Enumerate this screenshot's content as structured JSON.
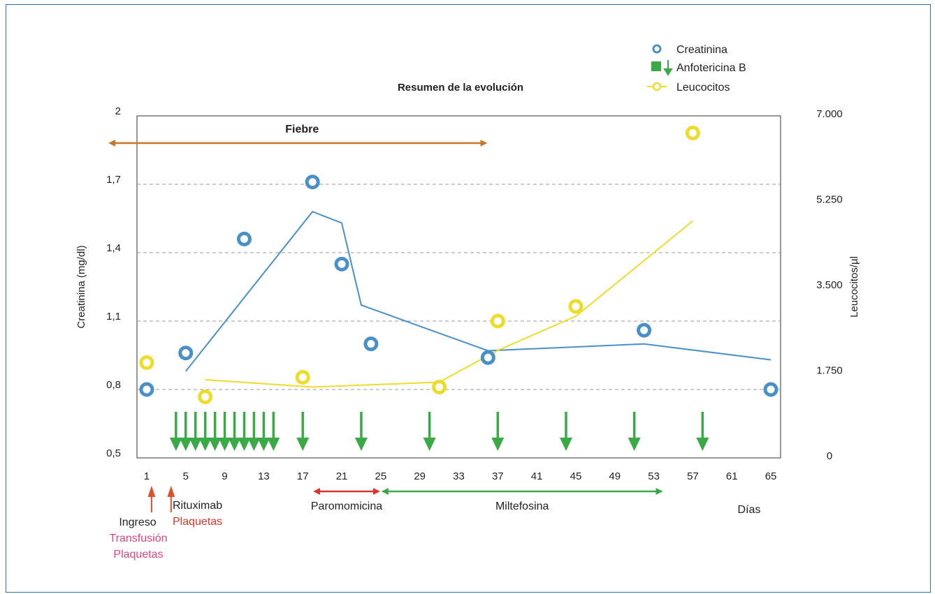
{
  "chart_data": {
    "type": "line",
    "title": "Resumen de la evolución",
    "xlabel": "Días",
    "ylabel_left": "Creatinina (mg/dl)",
    "ylabel_right": "Leucocitos/µl",
    "x_ticks": [
      "1",
      "5",
      "9",
      "13",
      "17",
      "21",
      "25",
      "29",
      "33",
      "37",
      "41",
      "45",
      "49",
      "53",
      "57",
      "61",
      "65"
    ],
    "x_range": [
      0,
      66
    ],
    "y_left_ticks": [
      "0,5",
      "0,8",
      "1,1",
      "1,4",
      "1,7",
      "2"
    ],
    "y_left_range": [
      0.5,
      2
    ],
    "y_right_ticks": [
      "0",
      "1.750",
      "3.500",
      "5.250",
      "7.000"
    ],
    "y_right_range": [
      0,
      7000
    ],
    "grid": "horizontal dashed",
    "legend_position": "top-right",
    "legend": [
      {
        "label": "Creatinina",
        "color": "#4a90c8",
        "symbol": "circle"
      },
      {
        "label": "Anfotericina B",
        "color": "#3aaa47",
        "symbol": "square-arrow"
      },
      {
        "label": "Leucocitos",
        "color": "#eedc2a",
        "symbol": "circle-line"
      }
    ],
    "series": [
      {
        "name": "Creatinina",
        "axis": "left",
        "color": "#4a90c8",
        "points": [
          [
            1,
            0.8
          ],
          [
            5,
            0.96
          ],
          [
            11,
            1.46
          ],
          [
            18,
            1.71
          ],
          [
            21,
            1.35
          ],
          [
            24,
            1.0
          ],
          [
            36,
            0.94
          ],
          [
            52,
            1.06
          ],
          [
            65,
            0.8
          ]
        ],
        "trend": [
          [
            5,
            0.88
          ],
          [
            18,
            1.58
          ],
          [
            21,
            1.53
          ],
          [
            23,
            1.17
          ],
          [
            36,
            0.97
          ],
          [
            52,
            1.0
          ],
          [
            65,
            0.93
          ]
        ]
      },
      {
        "name": "Leucocitos",
        "axis": "right",
        "color": "#eedc2a",
        "points": [
          [
            1,
            1950
          ],
          [
            7,
            1250
          ],
          [
            17,
            1650
          ],
          [
            31,
            1450
          ],
          [
            37,
            2800
          ],
          [
            45,
            3100
          ],
          [
            57,
            6650
          ]
        ],
        "trend": [
          [
            7,
            1600
          ],
          [
            18,
            1450
          ],
          [
            31,
            1550
          ],
          [
            37,
            2200
          ],
          [
            45,
            2900
          ],
          [
            57,
            4850
          ]
        ]
      }
    ],
    "anfotericina_b_days": [
      4,
      5,
      6,
      7,
      8,
      9,
      10,
      11,
      12,
      13,
      14,
      17,
      23,
      30,
      37,
      44,
      51,
      58
    ],
    "annotations": {
      "fiebre": {
        "label": "Fiebre",
        "start": -3,
        "end": 36,
        "color": "#c8762a"
      },
      "paromomicina": {
        "label": "Paromomicina",
        "start": 18,
        "end": 25,
        "color": "#d9362a"
      },
      "miltefosina": {
        "label": "Miltefosina",
        "start": 25,
        "end": 54,
        "color": "#3aaa47"
      },
      "events": [
        {
          "day": 1.5,
          "color": "#e0502a",
          "label": "Ingreso",
          "sub1": "Transfusión",
          "sub2": "Plaquetas"
        },
        {
          "day": 3.5,
          "color": "#e0502a",
          "label": "Rituximab",
          "sub1": "Plaquetas"
        }
      ],
      "text_colors": {
        "black": "#222222",
        "pink": "#e0457b",
        "red": "#d9362a"
      }
    }
  }
}
